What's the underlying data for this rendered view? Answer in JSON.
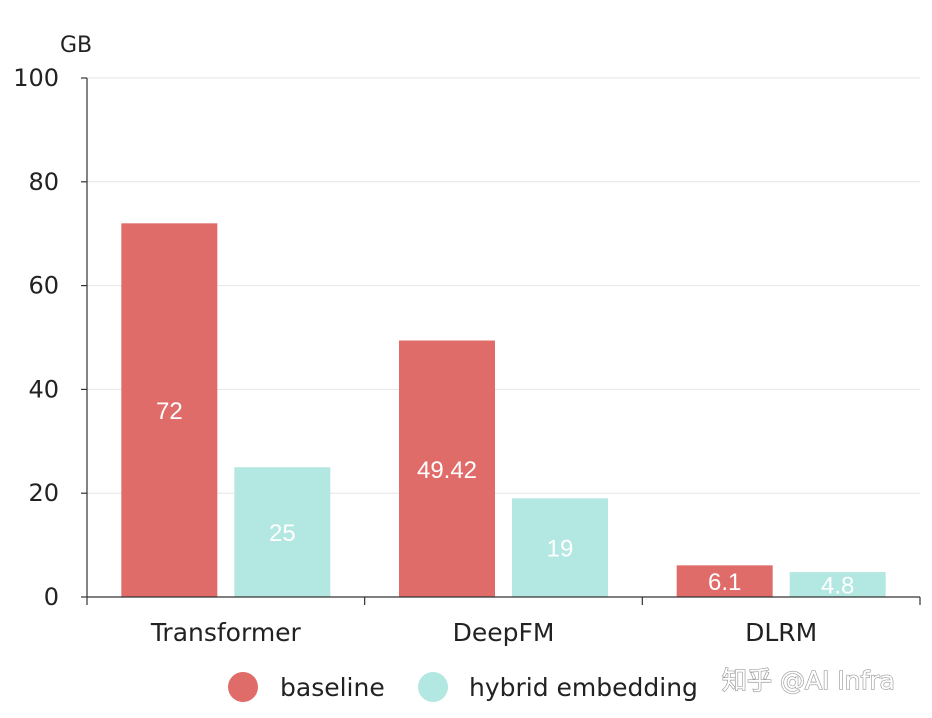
{
  "chart_data": {
    "type": "bar",
    "title": "",
    "ylabel": "GB",
    "xlabel": "",
    "ylim": [
      0,
      100
    ],
    "yticks": [
      0,
      20,
      40,
      60,
      80,
      100
    ],
    "grid": true,
    "categories": [
      "Transformer",
      "DeepFM",
      "DLRM"
    ],
    "series": [
      {
        "name": "baseline",
        "color": "#e06c6a",
        "values": [
          72,
          49.42,
          6.1
        ],
        "labels": [
          "72",
          "49.42",
          "6.1"
        ]
      },
      {
        "name": "hybrid embedding",
        "color": "#b3e7e1",
        "values": [
          25,
          19,
          4.8
        ],
        "labels": [
          "25",
          "19",
          "4.8"
        ]
      }
    ],
    "legend_position": "bottom-center"
  },
  "watermark": "知乎 @AI Infra"
}
